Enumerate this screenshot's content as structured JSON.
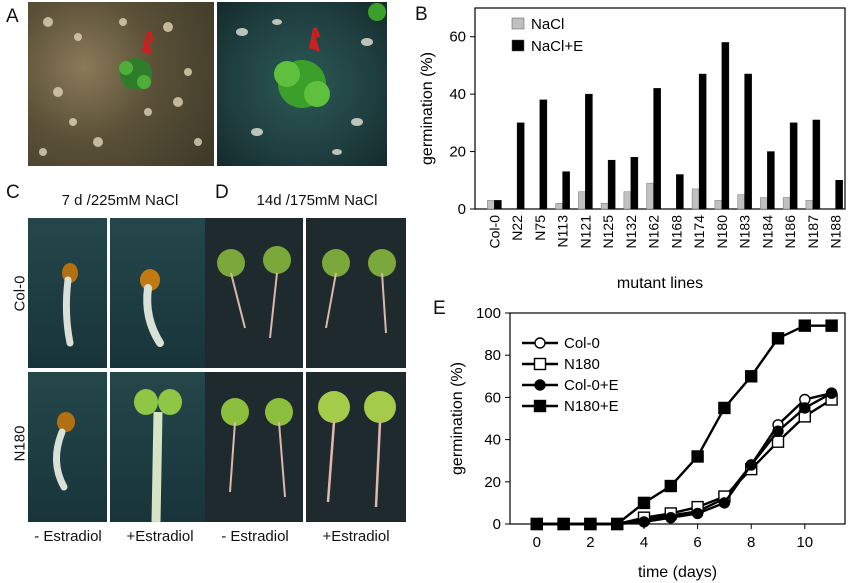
{
  "panels": {
    "A": {
      "label": "A"
    },
    "B": {
      "label": "B"
    },
    "C": {
      "label": "C",
      "title": "7 d /225mM NaCl"
    },
    "D": {
      "label": "D",
      "title": "14d /175mM NaCl"
    },
    "E": {
      "label": "E"
    }
  },
  "row_labels": {
    "top": "Col-0",
    "bottom": "N180"
  },
  "column_labels": {
    "minus": "- Estradiol",
    "plus": "+Estradiol"
  },
  "colors": {
    "black": "#000000",
    "gray": "#c0c0c0",
    "photo_dark": "#1c3a3c",
    "seedling_green": "#3aa02a",
    "arrow_red": "#cc1f1f"
  },
  "chart_data": [
    {
      "type": "bar",
      "panel": "B",
      "categories": [
        "Col-0",
        "N22",
        "N75",
        "N113",
        "N121",
        "N125",
        "N132",
        "N162",
        "N168",
        "N174",
        "N180",
        "N183",
        "N184",
        "N186",
        "N187",
        "N188"
      ],
      "series": [
        {
          "name": "NaCl",
          "color": "#c0c0c0",
          "values": [
            3,
            0,
            0,
            2,
            6,
            2,
            6,
            9,
            0,
            7,
            3,
            5,
            4,
            4,
            3,
            0
          ]
        },
        {
          "name": "NaCl+E",
          "color": "#000000",
          "values": [
            3,
            30,
            38,
            13,
            40,
            17,
            18,
            42,
            12,
            47,
            58,
            47,
            20,
            30,
            31,
            10
          ]
        }
      ],
      "ylabel": "germination (%)",
      "xlabel": "mutant lines",
      "ylim": [
        0,
        70
      ],
      "yticks": [
        0,
        20,
        40,
        60
      ],
      "legend": "top-left"
    },
    {
      "type": "line",
      "panel": "E",
      "x": [
        0,
        1,
        2,
        3,
        4,
        5,
        6,
        7,
        8,
        9,
        10,
        11
      ],
      "series": [
        {
          "name": "Col-0",
          "marker": "circle-open",
          "values": [
            0,
            0,
            0,
            0,
            2,
            4,
            6,
            12,
            28,
            47,
            59,
            62
          ]
        },
        {
          "name": "N180",
          "marker": "square-open",
          "values": [
            0,
            0,
            0,
            0,
            3,
            5,
            8,
            13,
            26,
            39,
            51,
            59
          ]
        },
        {
          "name": "Col-0+E",
          "marker": "circle-filled",
          "values": [
            0,
            0,
            0,
            0,
            1,
            3,
            5,
            10,
            28,
            44,
            55,
            62
          ]
        },
        {
          "name": "N180+E",
          "marker": "square-filled",
          "values": [
            0,
            0,
            0,
            0,
            10,
            18,
            32,
            55,
            70,
            88,
            94,
            94
          ]
        }
      ],
      "xlabel": "time (days)",
      "ylabel": "germination (%)",
      "xlim": [
        -1,
        11.5
      ],
      "ylim": [
        0,
        100
      ],
      "xticks": [
        0,
        2,
        4,
        6,
        8,
        10
      ],
      "yticks": [
        0,
        20,
        40,
        60,
        80,
        100
      ],
      "legend": "top-left"
    }
  ]
}
